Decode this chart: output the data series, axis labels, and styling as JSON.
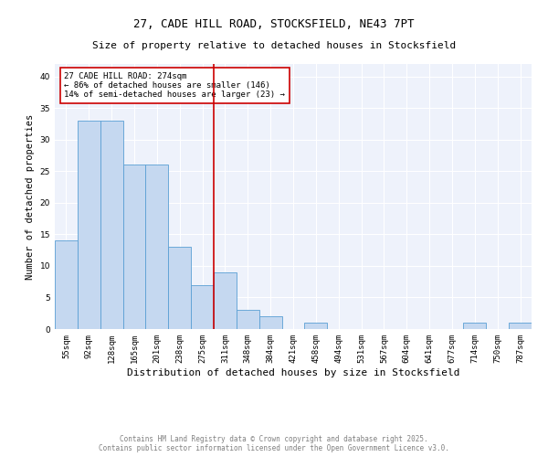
{
  "title1": "27, CADE HILL ROAD, STOCKSFIELD, NE43 7PT",
  "title2": "Size of property relative to detached houses in Stocksfield",
  "xlabel": "Distribution of detached houses by size in Stocksfield",
  "ylabel": "Number of detached properties",
  "categories": [
    "55sqm",
    "92sqm",
    "128sqm",
    "165sqm",
    "201sqm",
    "238sqm",
    "275sqm",
    "311sqm",
    "348sqm",
    "384sqm",
    "421sqm",
    "458sqm",
    "494sqm",
    "531sqm",
    "567sqm",
    "604sqm",
    "641sqm",
    "677sqm",
    "714sqm",
    "750sqm",
    "787sqm"
  ],
  "values": [
    14,
    33,
    33,
    26,
    26,
    13,
    7,
    9,
    3,
    2,
    0,
    1,
    0,
    0,
    0,
    0,
    0,
    0,
    1,
    0,
    1
  ],
  "bar_color": "#c5d8f0",
  "bar_edge_color": "#5a9fd4",
  "red_line_index": 6,
  "red_line_color": "#cc0000",
  "annotation_line1": "27 CADE HILL ROAD: 274sqm",
  "annotation_line2": "← 86% of detached houses are smaller (146)",
  "annotation_line3": "14% of semi-detached houses are larger (23) →",
  "annotation_box_edge": "#cc0000",
  "ylim": [
    0,
    42
  ],
  "yticks": [
    0,
    5,
    10,
    15,
    20,
    25,
    30,
    35,
    40
  ],
  "background_color": "#eef2fb",
  "footer1": "Contains HM Land Registry data © Crown copyright and database right 2025.",
  "footer2": "Contains public sector information licensed under the Open Government Licence v3.0.",
  "title1_fontsize": 9,
  "title2_fontsize": 8,
  "xlabel_fontsize": 8,
  "ylabel_fontsize": 7.5,
  "tick_fontsize": 6.5,
  "annotation_fontsize": 6.5,
  "footer_fontsize": 5.5
}
